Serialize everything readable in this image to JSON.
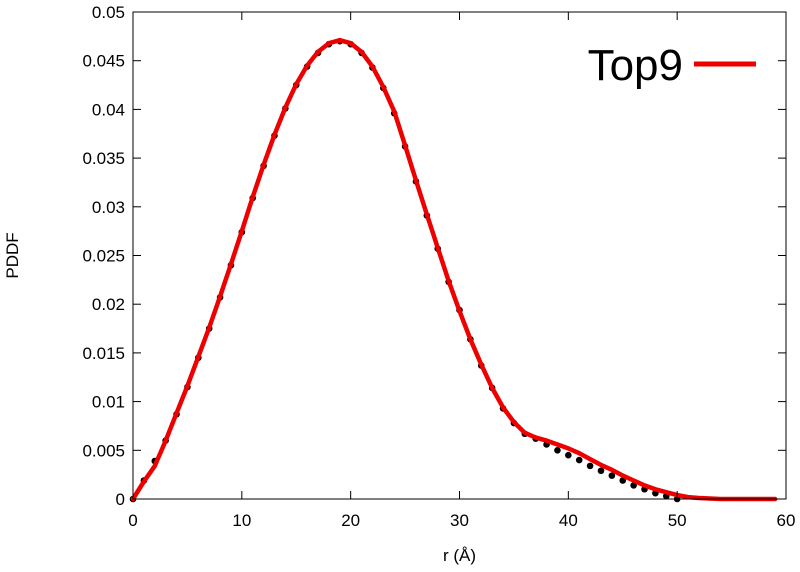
{
  "chart_data": {
    "type": "line",
    "xlabel": "r (Å)",
    "ylabel": "PDDF",
    "xlim": [
      0,
      60
    ],
    "ylim": [
      0,
      0.05
    ],
    "x_ticks": [
      "0",
      "10",
      "20",
      "30",
      "40",
      "50",
      "60"
    ],
    "y_ticks": [
      "0",
      "0.005",
      "0.01",
      "0.015",
      "0.02",
      "0.025",
      "0.03",
      "0.035",
      "0.04",
      "0.045",
      "0.05"
    ],
    "grid": false,
    "legend_position": "top-right",
    "series": [
      {
        "name": "Top9",
        "color": "#ee0000",
        "style": "line",
        "points": [
          [
            0,
            0.0
          ],
          [
            1,
            0.0018
          ],
          [
            2,
            0.0034
          ],
          [
            3,
            0.006
          ],
          [
            4,
            0.0088
          ],
          [
            5,
            0.0116
          ],
          [
            6,
            0.0146
          ],
          [
            7,
            0.0176
          ],
          [
            8,
            0.0208
          ],
          [
            9,
            0.0241
          ],
          [
            10,
            0.0275
          ],
          [
            11,
            0.031
          ],
          [
            12,
            0.0343
          ],
          [
            13,
            0.0374
          ],
          [
            14,
            0.0402
          ],
          [
            15,
            0.0426
          ],
          [
            16,
            0.0445
          ],
          [
            17,
            0.0459
          ],
          [
            18,
            0.0468
          ],
          [
            19,
            0.0471
          ],
          [
            20,
            0.0468
          ],
          [
            21,
            0.0459
          ],
          [
            22,
            0.0444
          ],
          [
            23,
            0.0423
          ],
          [
            24,
            0.0398
          ],
          [
            25,
            0.0363
          ],
          [
            26,
            0.0327
          ],
          [
            27,
            0.0292
          ],
          [
            28,
            0.0258
          ],
          [
            29,
            0.0224
          ],
          [
            30,
            0.0193
          ],
          [
            31,
            0.0164
          ],
          [
            32,
            0.0138
          ],
          [
            33,
            0.0114
          ],
          [
            34,
            0.0094
          ],
          [
            35,
            0.0079
          ],
          [
            36,
            0.0068
          ],
          [
            37,
            0.0063
          ],
          [
            38,
            0.006
          ],
          [
            39,
            0.0056
          ],
          [
            40,
            0.0052
          ],
          [
            41,
            0.0047
          ],
          [
            42,
            0.0041
          ],
          [
            43,
            0.0035
          ],
          [
            44,
            0.003
          ],
          [
            45,
            0.0024
          ],
          [
            46,
            0.0019
          ],
          [
            47,
            0.0014
          ],
          [
            48,
            0.001
          ],
          [
            49,
            0.0007
          ],
          [
            50,
            0.0004
          ],
          [
            51,
            0.0002
          ],
          [
            52,
            0.0001
          ],
          [
            53,
            5e-05
          ],
          [
            54,
            0.0
          ],
          [
            59,
            0.0
          ]
        ]
      },
      {
        "name": "",
        "color": "#000000",
        "style": "points",
        "points": [
          [
            0,
            0.0
          ],
          [
            1,
            0.0019
          ],
          [
            2,
            0.0039
          ],
          [
            3,
            0.006
          ],
          [
            4,
            0.0087
          ],
          [
            5,
            0.0115
          ],
          [
            6,
            0.0145
          ],
          [
            7,
            0.0175
          ],
          [
            8,
            0.0207
          ],
          [
            9,
            0.024
          ],
          [
            10,
            0.0274
          ],
          [
            11,
            0.0309
          ],
          [
            12,
            0.0342
          ],
          [
            13,
            0.0373
          ],
          [
            14,
            0.0401
          ],
          [
            15,
            0.0425
          ],
          [
            16,
            0.0444
          ],
          [
            17,
            0.0458
          ],
          [
            18,
            0.0467
          ],
          [
            19,
            0.047
          ],
          [
            20,
            0.0467
          ],
          [
            21,
            0.0458
          ],
          [
            22,
            0.0443
          ],
          [
            23,
            0.0422
          ],
          [
            24,
            0.0396
          ],
          [
            25,
            0.0362
          ],
          [
            26,
            0.0326
          ],
          [
            27,
            0.0291
          ],
          [
            28,
            0.0257
          ],
          [
            29,
            0.0223
          ],
          [
            30,
            0.0194
          ],
          [
            31,
            0.0164
          ],
          [
            32,
            0.0137
          ],
          [
            33,
            0.0114
          ],
          [
            34,
            0.0093
          ],
          [
            35,
            0.0078
          ],
          [
            36,
            0.0067
          ],
          [
            37,
            0.0062
          ],
          [
            38,
            0.0056
          ],
          [
            39,
            0.005
          ],
          [
            40,
            0.0045
          ],
          [
            41,
            0.004
          ],
          [
            42,
            0.0034
          ],
          [
            43,
            0.0029
          ],
          [
            44,
            0.0024
          ],
          [
            45,
            0.0019
          ],
          [
            46,
            0.0014
          ],
          [
            47,
            0.001
          ],
          [
            48,
            0.0006
          ],
          [
            49,
            0.0003
          ],
          [
            50,
            0.0
          ]
        ]
      }
    ]
  }
}
